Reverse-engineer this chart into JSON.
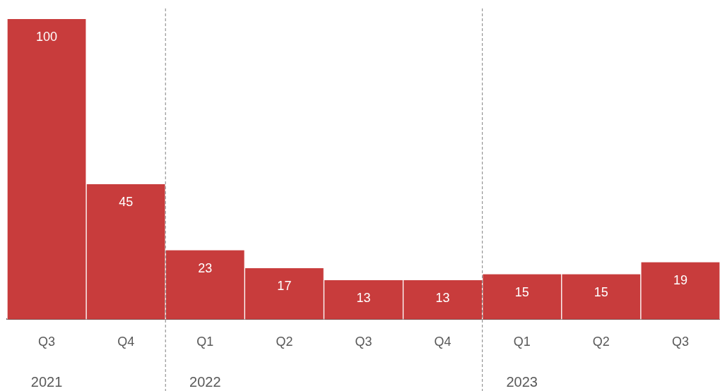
{
  "chart_data": {
    "type": "bar",
    "categories": [
      "Q3",
      "Q4",
      "Q1",
      "Q2",
      "Q3",
      "Q4",
      "Q1",
      "Q2",
      "Q3"
    ],
    "values": [
      100,
      45,
      23,
      17,
      13,
      13,
      15,
      15,
      19
    ],
    "color": "#c83c3c",
    "data_labels": true,
    "grid": false,
    "legend": false,
    "tick_labels": "x",
    "annotations": [
      "2021",
      "2022",
      "2023"
    ]
  }
}
